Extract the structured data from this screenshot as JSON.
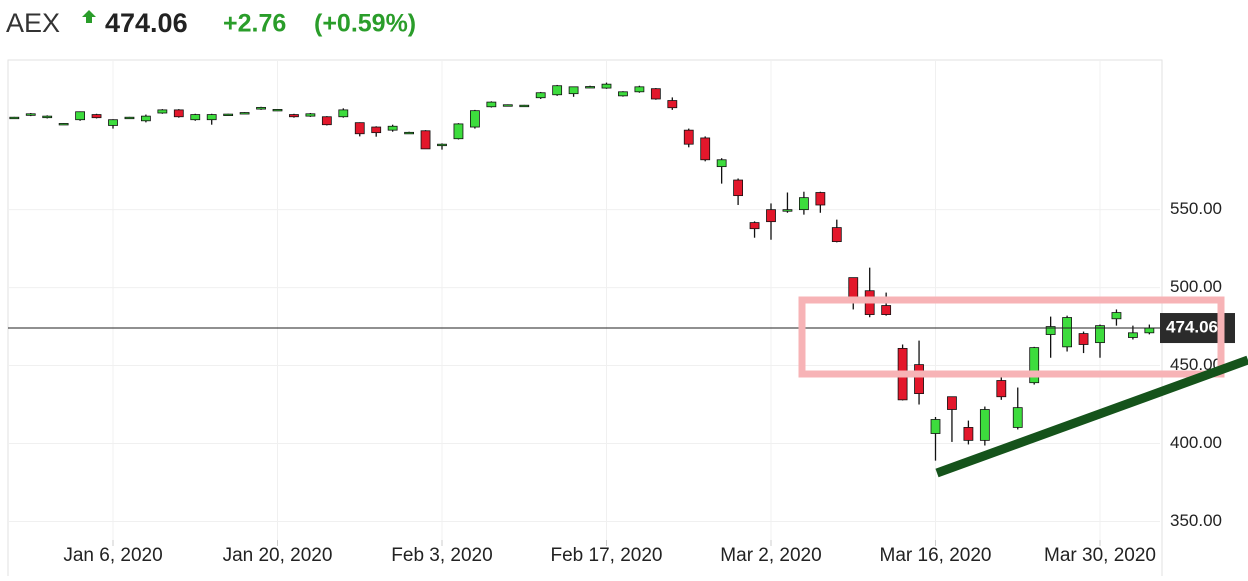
{
  "header": {
    "symbol": "AEX",
    "price": "474.06",
    "change": "+2.76",
    "change_pct": "(+0.59%)"
  },
  "chart_data": {
    "type": "candlestick",
    "categories": [
      null,
      null,
      null,
      null,
      null,
      null,
      "Jan 6, 2020",
      null,
      null,
      null,
      null,
      null,
      null,
      null,
      null,
      null,
      "Jan 20, 2020",
      null,
      null,
      null,
      null,
      null,
      null,
      null,
      null,
      null,
      "Feb 3, 2020",
      null,
      null,
      null,
      null,
      null,
      null,
      null,
      null,
      null,
      "Feb 17, 2020",
      null,
      null,
      null,
      null,
      null,
      null,
      null,
      null,
      null,
      "Mar 2, 2020",
      null,
      null,
      null,
      null,
      null,
      null,
      null,
      null,
      null,
      "Mar 16, 2020",
      null,
      null,
      null,
      null,
      null,
      null,
      null,
      null,
      null,
      "Mar 30, 2020",
      null,
      null,
      null
    ],
    "open": [
      609,
      610.5,
      609,
      605,
      607.7,
      611,
      604,
      609,
      607,
      612,
      614,
      607.7,
      607.7,
      611,
      612,
      614.5,
      614,
      611,
      610,
      609.6,
      609.6,
      605.8,
      603,
      601,
      599.4,
      600.6,
      591.7,
      595.5,
      603,
      616,
      617,
      616.7,
      621.8,
      623.7,
      624.4,
      628.8,
      628,
      623,
      625.6,
      627.6,
      620,
      601,
      596,
      577.6,
      569,
      541.7,
      550,
      549,
      550,
      561,
      538.5,
      506.4,
      498,
      488.5,
      461,
      450.6,
      406.4,
      430,
      410.3,
      402,
      440.4,
      410.3,
      439,
      469.9,
      462,
      470.5,
      464.7,
      480,
      468,
      471
    ],
    "high": [
      609.5,
      612,
      610.5,
      605.5,
      613,
      611.5,
      608,
      609.5,
      611,
      614.5,
      614.5,
      611.5,
      611.5,
      611.5,
      612.5,
      616,
      614.5,
      611.5,
      612,
      610,
      615,
      606,
      603.5,
      604.5,
      600,
      601,
      592.5,
      605.5,
      614,
      619.5,
      617.5,
      617.2,
      625.5,
      630,
      629,
      629.5,
      631.5,
      626,
      629.5,
      628,
      622,
      602,
      597,
      583,
      570,
      542.5,
      554,
      561,
      561.5,
      561.5,
      543.6,
      506.4,
      512.8,
      496.8,
      463.5,
      466,
      417,
      430,
      414.7,
      423.7,
      443,
      435.9,
      462,
      481.4,
      482,
      471.8,
      476.3,
      486,
      475.6,
      476.3
    ],
    "low": [
      608.7,
      610,
      608.5,
      604.8,
      607,
      608.5,
      602,
      609,
      606,
      611.5,
      609,
      607,
      604.5,
      611,
      612,
      614,
      614,
      609,
      609.5,
      604,
      609,
      597,
      596.8,
      600,
      599.2,
      589,
      588.5,
      595,
      602,
      615.5,
      616.8,
      616.5,
      621,
      623,
      622.4,
      628.5,
      627.5,
      622.5,
      625,
      620.5,
      614,
      590,
      581,
      566.7,
      553,
      532,
      530.7,
      548,
      546.8,
      548,
      529,
      486,
      481,
      482,
      427.6,
      425,
      389,
      401,
      399.4,
      398.7,
      428,
      409,
      437.8,
      455,
      459,
      458,
      455,
      475.6,
      466.7,
      470
    ],
    "close": [
      609.3,
      611.5,
      610,
      605.3,
      612.8,
      609,
      607.7,
      609.3,
      610,
      614,
      609.6,
      611,
      611,
      611.3,
      612.3,
      615.6,
      614.3,
      609.6,
      611.5,
      604.5,
      614,
      598.7,
      599.4,
      603.5,
      599.6,
      589,
      592,
      605,
      613.5,
      619,
      617.3,
      617,
      625,
      629.5,
      628.8,
      629,
      630.5,
      625.6,
      628.8,
      621,
      615.4,
      592,
      582,
      582,
      559,
      537.8,
      542.3,
      550,
      557.7,
      553,
      529.5,
      493.6,
      482.7,
      482.7,
      428,
      432,
      415.4,
      421.8,
      402,
      421.8,
      430,
      423,
      461.5,
      475,
      480.8,
      463.5,
      475.6,
      484,
      471,
      474
    ],
    "up_color": "#3ddc3d",
    "down_color": "#e3172b",
    "current_value": 474.06,
    "ylim": [
      315,
      646
    ],
    "yticks": [
      {
        "value": 350,
        "label": "350.00"
      },
      {
        "value": 400,
        "label": "400.00"
      },
      {
        "value": 450,
        "label": "450.00"
      },
      {
        "value": 500,
        "label": "500.00"
      },
      {
        "value": 550,
        "label": "550.00"
      }
    ],
    "grid": true
  }
}
